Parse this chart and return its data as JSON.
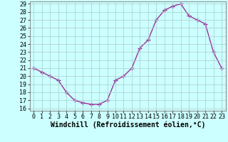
{
  "x": [
    0,
    1,
    2,
    3,
    4,
    5,
    6,
    7,
    8,
    9,
    10,
    11,
    12,
    13,
    14,
    15,
    16,
    17,
    18,
    19,
    20,
    21,
    22,
    23
  ],
  "y": [
    21,
    20.5,
    20,
    19.5,
    18,
    17,
    16.7,
    16.5,
    16.5,
    17,
    19.5,
    20,
    21,
    23.5,
    24.5,
    27,
    28.2,
    28.7,
    29,
    27.5,
    27,
    26.5,
    23,
    21
  ],
  "line_color": "#993399",
  "marker": "+",
  "marker_size": 4,
  "bg_color": "#ccffff",
  "grid_color": "#aacccc",
  "xlabel": "Windchill (Refroidissement éolien,°C)",
  "xlabel_fontsize": 7,
  "ylim": [
    16,
    29
  ],
  "yticks": [
    16,
    17,
    18,
    19,
    20,
    21,
    22,
    23,
    24,
    25,
    26,
    27,
    28,
    29
  ],
  "xticks": [
    0,
    1,
    2,
    3,
    4,
    5,
    6,
    7,
    8,
    9,
    10,
    11,
    12,
    13,
    14,
    15,
    16,
    17,
    18,
    19,
    20,
    21,
    22,
    23
  ],
  "tick_fontsize": 6,
  "line_width": 1.0,
  "spine_color": "#888888"
}
